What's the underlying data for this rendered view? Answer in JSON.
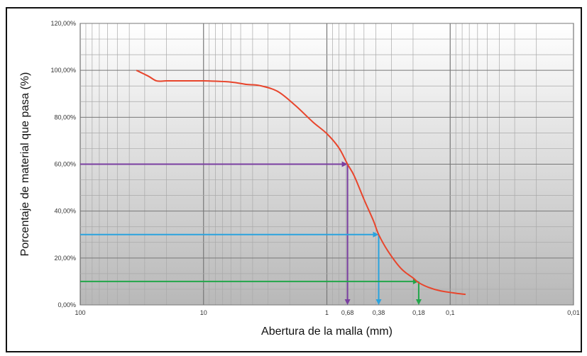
{
  "chart_data": {
    "type": "line",
    "title": "",
    "xlabel": "Abertura de la malla (mm)",
    "ylabel": "Porcentaje de material que pasa (%)",
    "x_scale": "log",
    "x_reversed": true,
    "xlim": [
      100,
      0.01
    ],
    "ylim": [
      0,
      1.2
    ],
    "grid": true,
    "y_ticks": [
      {
        "value": 0,
        "label": "0,00%"
      },
      {
        "value": 0.2,
        "label": "20,00%"
      },
      {
        "value": 0.4,
        "label": "40,00%"
      },
      {
        "value": 0.6,
        "label": "60,00%"
      },
      {
        "value": 0.8,
        "label": "80,00%"
      },
      {
        "value": 1.0,
        "label": "100,00%"
      },
      {
        "value": 1.2,
        "label": "120,00%"
      }
    ],
    "x_ticks": [
      {
        "value": 100,
        "label": "100"
      },
      {
        "value": 10,
        "label": "10"
      },
      {
        "value": 1,
        "label": "1"
      },
      {
        "value": 0.1,
        "label": "0,1"
      },
      {
        "value": 0.01,
        "label": "0,01"
      }
    ],
    "series": [
      {
        "color": "#e8452c",
        "x": [
          35,
          28,
          24,
          20,
          15,
          10,
          6,
          4.5,
          3.5,
          2.5,
          1.8,
          1.3,
          1.0,
          0.8,
          0.68,
          0.6,
          0.5,
          0.42,
          0.38,
          0.32,
          0.25,
          0.2,
          0.18,
          0.15,
          0.12,
          0.09,
          0.075
        ],
        "y": [
          1.0,
          0.975,
          0.955,
          0.955,
          0.955,
          0.955,
          0.95,
          0.94,
          0.935,
          0.91,
          0.85,
          0.78,
          0.73,
          0.67,
          0.6,
          0.55,
          0.45,
          0.36,
          0.3,
          0.23,
          0.155,
          0.115,
          0.095,
          0.075,
          0.06,
          0.05,
          0.045
        ]
      }
    ],
    "annotations": [
      {
        "y": 0.6,
        "x": 0.68,
        "label": "0,68",
        "color": "#7a3fa0"
      },
      {
        "y": 0.3,
        "x": 0.38,
        "label": "0,38",
        "color": "#2aa3de"
      },
      {
        "y": 0.1,
        "x": 0.18,
        "label": "0,18",
        "color": "#22a64a"
      }
    ]
  }
}
